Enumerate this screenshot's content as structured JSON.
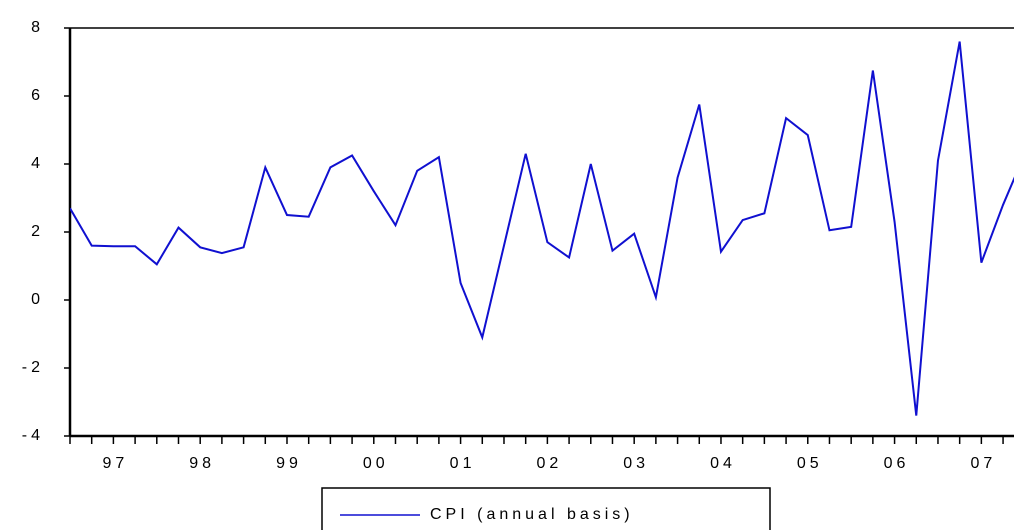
{
  "chart_data": {
    "type": "line",
    "x": [
      1997,
      1997.25,
      1997.5,
      1997.75,
      1998,
      1998.25,
      1998.5,
      1998.75,
      1999,
      1999.25,
      1999.5,
      1999.75,
      2000,
      2000.25,
      2000.5,
      2000.75,
      2001,
      2001.25,
      2001.5,
      2001.75,
      2002,
      2002.25,
      2002.5,
      2002.75,
      2003,
      2003.25,
      2003.5,
      2003.75,
      2004,
      2004.25,
      2004.5,
      2004.75,
      2005,
      2005.25,
      2005.5,
      2005.75,
      2006,
      2006.25,
      2006.5,
      2006.75,
      2007,
      2007.25,
      2007.5,
      2007.75,
      2008
    ],
    "series": [
      {
        "name": "CPI (annual basis)",
        "color": "#1010d0",
        "values": [
          2.7,
          1.6,
          1.58,
          1.58,
          1.05,
          2.13,
          1.55,
          1.38,
          1.55,
          3.9,
          2.5,
          2.45,
          3.9,
          4.25,
          3.2,
          2.2,
          3.8,
          4.2,
          0.5,
          -1.1,
          1.6,
          4.3,
          1.7,
          1.25,
          4.0,
          1.45,
          1.95,
          0.08,
          3.6,
          5.75,
          1.42,
          2.35,
          2.55,
          5.35,
          4.85,
          2.05,
          2.15,
          6.75,
          2.3,
          -3.4,
          4.1,
          7.6,
          1.1,
          2.8,
          4.3
        ]
      }
    ],
    "xlim": [
      1997,
      2007.876
    ],
    "xticks": [
      {
        "value": 1997.5,
        "label": "97"
      },
      {
        "value": 1998.5,
        "label": "98"
      },
      {
        "value": 1999.5,
        "label": "99"
      },
      {
        "value": 2000.5,
        "label": "00"
      },
      {
        "value": 2001.5,
        "label": "01"
      },
      {
        "value": 2002.5,
        "label": "02"
      },
      {
        "value": 2003.5,
        "label": "03"
      },
      {
        "value": 2004.5,
        "label": "04"
      },
      {
        "value": 2005.5,
        "label": "05"
      },
      {
        "value": 2006.5,
        "label": "06"
      },
      {
        "value": 2007.5,
        "label": "07"
      }
    ],
    "ylim": [
      -4,
      8
    ],
    "yticks": [
      -4,
      -2,
      0,
      2,
      4,
      6,
      8
    ]
  }
}
